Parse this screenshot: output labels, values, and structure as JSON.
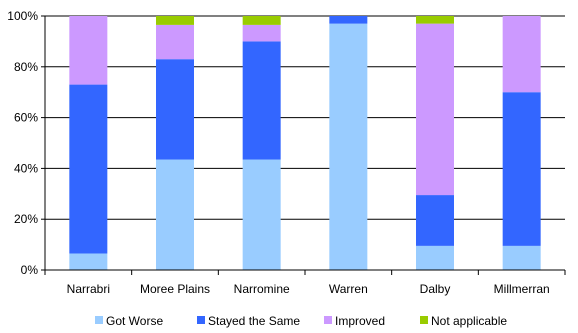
{
  "chart_data": {
    "type": "bar",
    "stacked": true,
    "categories": [
      "Narrabri",
      "Moree Plains",
      "Narromine",
      "Warren",
      "Dalby",
      "Millmerran"
    ],
    "series": [
      {
        "name": "Got Worse",
        "color": "#99ccff",
        "values": [
          6.5,
          43.5,
          43.5,
          97,
          9.5,
          9.5
        ]
      },
      {
        "name": "Stayed the Same",
        "color": "#3366ff",
        "values": [
          66.5,
          39.5,
          46.5,
          3,
          20,
          60.5
        ]
      },
      {
        "name": "Improved",
        "color": "#cc99ff",
        "values": [
          27,
          13.5,
          6.5,
          0,
          67.5,
          30
        ]
      },
      {
        "name": "Not applicable",
        "color": "#99cc00",
        "values": [
          0,
          3.5,
          3.5,
          0,
          3,
          0
        ]
      }
    ],
    "yticks": [
      "0%",
      "20%",
      "40%",
      "60%",
      "80%",
      "100%"
    ],
    "ylim": [
      0,
      100
    ],
    "grid": true,
    "legend": "bottom"
  }
}
